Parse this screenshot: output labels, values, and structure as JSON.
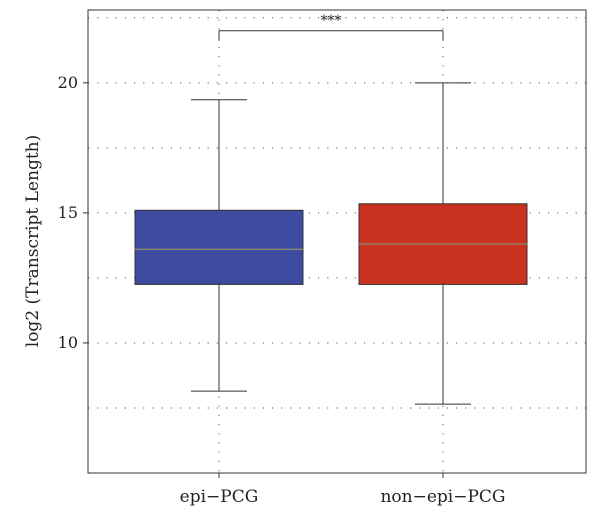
{
  "chart_data": {
    "type": "box",
    "title": "",
    "xlabel": "",
    "ylabel": "log2 (Transcript Length)",
    "ylim": [
      5.0,
      22.8
    ],
    "yticks": [
      10,
      15,
      20
    ],
    "grid": true,
    "categories": [
      "epi−PCG",
      "non−epi−PCG"
    ],
    "boxes": [
      {
        "category": "epi−PCG",
        "whisker_low": 8.15,
        "q1": 12.25,
        "median": 13.6,
        "q3": 15.1,
        "whisker_high": 19.35,
        "color": "#3d4ba0"
      },
      {
        "category": "non−epi−PCG",
        "whisker_low": 7.65,
        "q1": 12.25,
        "median": 13.8,
        "q3": 15.35,
        "whisker_high": 20.0,
        "color": "#c8321e"
      }
    ],
    "significance": {
      "label": "***",
      "between": [
        "epi−PCG",
        "non−epi−PCG"
      ],
      "y": 22.0
    }
  }
}
